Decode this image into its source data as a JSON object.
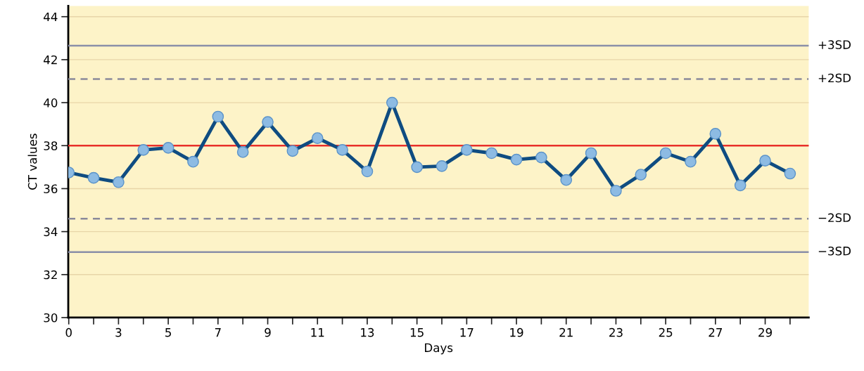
{
  "chart_data": {
    "type": "line",
    "xlabel": "Days",
    "ylabel": "CT values",
    "categories": [
      "0",
      null,
      "3",
      null,
      "5",
      null,
      "7",
      null,
      "9",
      null,
      "11",
      null,
      "13",
      null,
      "15",
      null,
      "17",
      null,
      "19",
      null,
      "21",
      null,
      "23",
      null,
      "25",
      null,
      "27",
      null,
      "29",
      null
    ],
    "series": [
      {
        "color": "#0f4c81",
        "values": [
          36.75,
          36.5,
          36.3,
          37.8,
          37.9,
          37.25,
          39.35,
          37.7,
          39.1,
          37.75,
          38.35,
          37.8,
          36.8,
          40.0,
          37.0,
          37.05,
          37.8,
          37.65,
          37.35,
          37.45,
          36.4,
          37.65,
          35.9,
          36.65,
          37.65,
          37.25,
          38.55,
          36.15,
          37.3,
          36.7
        ]
      }
    ],
    "marker": "circle",
    "line_style": "solid",
    "ylim": [
      30,
      44.5
    ],
    "yticks": [
      30,
      32,
      34,
      36,
      38,
      40,
      42,
      44
    ],
    "grid": "y",
    "ref_lines": [
      {
        "axis": "y",
        "value": 42.65,
        "label": "+3SD",
        "color": "#8a8fa8",
        "line_style": "solid"
      },
      {
        "axis": "y",
        "value": 41.1,
        "label": "+2SD",
        "color": "#8a8a9a",
        "line_style": "dashed"
      },
      {
        "axis": "y",
        "value": 38,
        "label": null,
        "color": "#e8302a",
        "line_style": "solid"
      },
      {
        "axis": "y",
        "value": 34.6,
        "label": "−2SD",
        "color": "#8a8a9a",
        "line_style": "dashed"
      },
      {
        "axis": "y",
        "value": 33.05,
        "label": "−3SD",
        "color": "#8a8fa8",
        "line_style": "solid"
      }
    ]
  }
}
